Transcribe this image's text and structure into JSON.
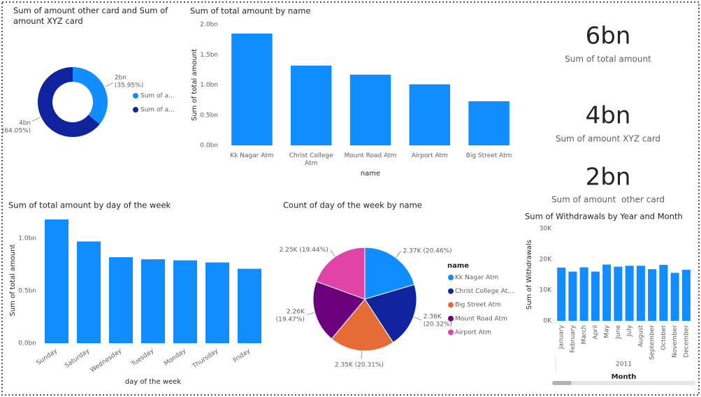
{
  "chart_data": [
    {
      "type": "donut",
      "title": "Sum of amount other card and Sum of amount XYZ card",
      "categories": [
        "Sum of a...",
        "Sum of a..."
      ],
      "values": [
        35.95,
        64.05
      ],
      "value_labels": [
        "2bn (35.95%)",
        "4bn (64.05%)"
      ],
      "colors": [
        "#118dff",
        "#12239e"
      ]
    },
    {
      "type": "bar",
      "title": "Sum of total amount by name",
      "ylabel": "Sum of total amount",
      "xlabel": "name",
      "categories": [
        "Kk Nagar Atm",
        "Christ College Atm",
        "Mount Road Atm",
        "Airport Atm",
        "Big Street Atm"
      ],
      "values": [
        1.85,
        1.32,
        1.17,
        1.01,
        0.73
      ],
      "color": "#118dff",
      "ylim": [
        0,
        2.0
      ],
      "yticks": [
        {
          "value": 0,
          "label": "0.0bn"
        },
        {
          "value": 0.5,
          "label": "0.5bn"
        },
        {
          "value": 1.0,
          "label": "1.0bn"
        },
        {
          "value": 1.5,
          "label": "1.5bn"
        },
        {
          "value": 2.0,
          "label": "2.0bn"
        }
      ]
    },
    {
      "type": "card",
      "title": "Sum of total amount",
      "values": [
        6
      ],
      "value_labels": [
        "6bn"
      ]
    },
    {
      "type": "card",
      "title": "Sum of amount XYZ card",
      "values": [
        4
      ],
      "value_labels": [
        "4bn"
      ]
    },
    {
      "type": "card",
      "title": "Sum of amount  other card",
      "values": [
        2
      ],
      "value_labels": [
        "2bn"
      ]
    },
    {
      "type": "bar",
      "title": "Sum of total amount by day of the week",
      "ylabel": "Sum of total amount",
      "xlabel": "day of the week",
      "categories": [
        "Sunday",
        "Saturday",
        "Wednesday",
        "Tuesday",
        "Monday",
        "Thursday",
        "Friday"
      ],
      "values": [
        1.18,
        0.97,
        0.82,
        0.8,
        0.79,
        0.77,
        0.71
      ],
      "color": "#118dff",
      "ylim": [
        0,
        1.2
      ],
      "yticks": [
        {
          "value": 0,
          "label": "0.0bn"
        },
        {
          "value": 0.5,
          "label": "0.5bn"
        },
        {
          "value": 1.0,
          "label": "1.0bn"
        }
      ]
    },
    {
      "type": "pie",
      "title": "Count of day of the week by name",
      "legend_title": "name",
      "categories": [
        "Kk Nagar Atm",
        "Christ College At...",
        "Big Street Atm",
        "Mount Road Atm",
        "Airport Atm"
      ],
      "values": [
        20.46,
        20.32,
        20.31,
        19.47,
        19.44
      ],
      "value_labels": [
        "2.37K (20.46%)",
        "2.36K (20.32%)",
        "2.35K (20.31%)",
        "2.26K (19.47%)",
        "2.25K (19.44%)"
      ],
      "colors": [
        "#118dff",
        "#12239e",
        "#e66c37",
        "#6b007b",
        "#e044a7"
      ]
    },
    {
      "type": "bar",
      "title": "Sum of Withdrawals by Year and Month",
      "ylabel": "Sum of Withdrawals",
      "xlabel": "Month",
      "x_group": "2011",
      "categories": [
        "January",
        "February",
        "March",
        "April",
        "May",
        "June",
        "July",
        "August",
        "September",
        "October",
        "November",
        "December"
      ],
      "values": [
        17.3,
        16.0,
        17.4,
        16.0,
        18.3,
        17.6,
        17.9,
        17.9,
        16.8,
        18.2,
        15.6,
        16.6
      ],
      "color": "#118dff",
      "ylim": [
        0,
        30
      ],
      "yticks": [
        {
          "value": 0,
          "label": "0K"
        },
        {
          "value": 10,
          "label": "10K"
        },
        {
          "value": 20,
          "label": "20K"
        },
        {
          "value": 30,
          "label": "30K"
        }
      ]
    }
  ]
}
